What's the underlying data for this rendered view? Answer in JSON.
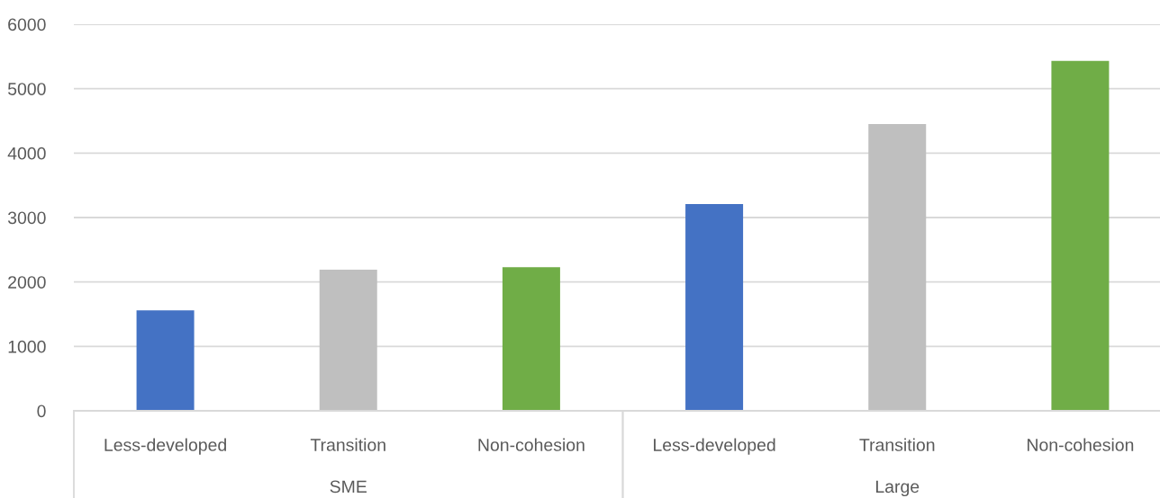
{
  "chart_data": {
    "type": "bar",
    "categories": [
      "Less-developed",
      "Transition",
      "Non-cohesion",
      "Less-developed",
      "Transition",
      "Non-cohesion"
    ],
    "values": [
      1560,
      2190,
      2230,
      3210,
      4450,
      5430
    ],
    "colors": [
      "#4472c4",
      "#bfbfbf",
      "#70ad47",
      "#4472c4",
      "#bfbfbf",
      "#70ad47"
    ],
    "ylim": [
      0,
      6000
    ],
    "yticks": [
      0,
      1000,
      2000,
      3000,
      4000,
      5000,
      6000
    ],
    "grid": "y",
    "annotations": [
      "SME",
      "Large"
    ]
  }
}
